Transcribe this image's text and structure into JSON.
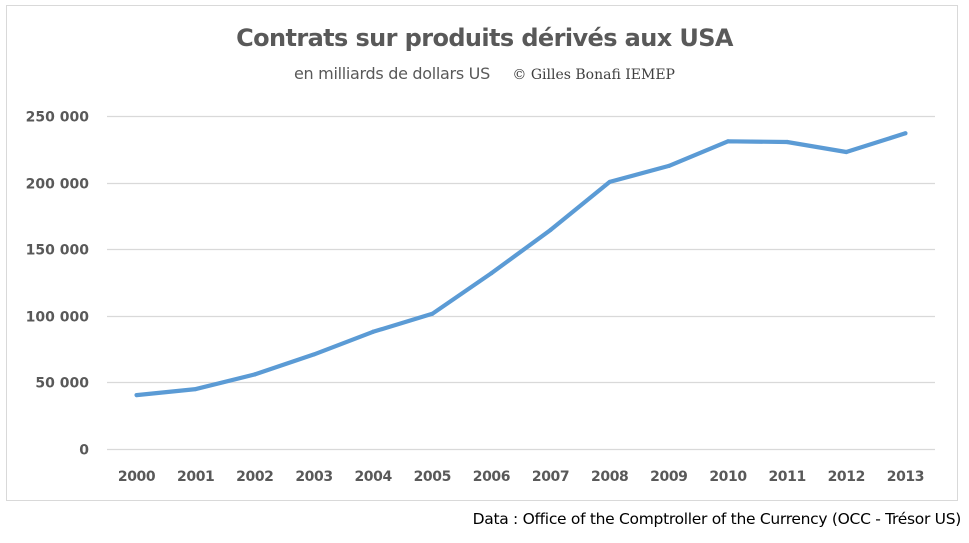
{
  "chart_data": {
    "type": "line",
    "title": "Contrats sur produits dérivés aux USA",
    "subtitle": "en milliards de dollars US",
    "credit": "© Gilles Bonafi   IEMEP",
    "xlabel": "",
    "ylabel": "",
    "categories": [
      "2000",
      "2001",
      "2002",
      "2003",
      "2004",
      "2005",
      "2006",
      "2007",
      "2008",
      "2009",
      "2010",
      "2011",
      "2012",
      "2013"
    ],
    "series": [
      {
        "name": "Contrats sur produits dérivés",
        "color": "#5b9bd5",
        "values": [
          40500,
          45000,
          56000,
          71000,
          88000,
          101500,
          132000,
          164500,
          200500,
          212500,
          231000,
          230500,
          223000,
          237000
        ]
      }
    ],
    "ylim": [
      0,
      250000
    ],
    "yticks": [
      0,
      50000,
      100000,
      150000,
      200000,
      250000
    ],
    "ytick_labels": [
      "0",
      "50 000",
      "100 000",
      "150 000",
      "200 000",
      "250 000"
    ],
    "grid": true,
    "gridline_color": "#d9d9d9",
    "legend": "none"
  },
  "source_note": "Data : Office of the Comptroller of the Currency (OCC - Trésor US)"
}
